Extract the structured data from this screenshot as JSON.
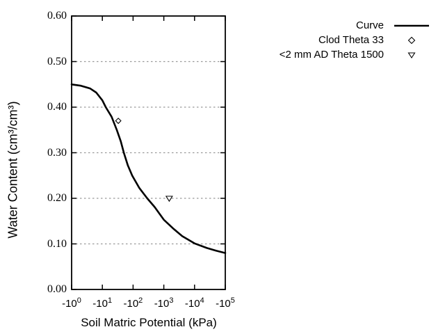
{
  "chart_data": {
    "type": "line",
    "title": "",
    "xlabel": "Soil Matric Potential (kPa)",
    "ylabel": "Water Content (cm³/cm³)",
    "x_axis": {
      "scale": "log10 of negative kPa",
      "decade_min": 0,
      "decade_max": 5,
      "tick_labels": [
        {
          "base": "-10",
          "exp": "0"
        },
        {
          "base": "-10",
          "exp": "1"
        },
        {
          "base": "-10",
          "exp": "2"
        },
        {
          "base": "-10",
          "exp": "3"
        },
        {
          "base": "-10",
          "exp": "4"
        },
        {
          "base": "-10",
          "exp": "5"
        }
      ]
    },
    "y_axis": {
      "min": 0.0,
      "max": 0.6,
      "step": 0.1,
      "tick_labels": [
        "0.00",
        "0.10",
        "0.20",
        "0.30",
        "0.40",
        "0.50",
        "0.60"
      ],
      "grid": "horizontal-dashed"
    },
    "series": [
      {
        "name": "Curve",
        "type": "line",
        "color": "#000000",
        "points_log10kpa_theta": [
          [
            0.0,
            0.45
          ],
          [
            0.3,
            0.447
          ],
          [
            0.6,
            0.441
          ],
          [
            0.8,
            0.432
          ],
          [
            1.0,
            0.415
          ],
          [
            1.11,
            0.4
          ],
          [
            1.3,
            0.379
          ],
          [
            1.47,
            0.35
          ],
          [
            1.6,
            0.325
          ],
          [
            1.7,
            0.3
          ],
          [
            1.83,
            0.272
          ],
          [
            1.97,
            0.25
          ],
          [
            2.2,
            0.223
          ],
          [
            2.46,
            0.2
          ],
          [
            2.7,
            0.181
          ],
          [
            3.0,
            0.153
          ],
          [
            3.3,
            0.134
          ],
          [
            3.6,
            0.117
          ],
          [
            4.0,
            0.101
          ],
          [
            4.4,
            0.091
          ],
          [
            4.7,
            0.085
          ],
          [
            5.0,
            0.08
          ]
        ]
      },
      {
        "name": "Clod Theta 33",
        "type": "scatter",
        "marker": "open-diamond",
        "points_kpa_theta": [
          [
            -33,
            0.37
          ]
        ]
      },
      {
        "name": "<2 mm AD Theta 1500",
        "type": "scatter",
        "marker": "open-triangle-down",
        "points_kpa_theta": [
          [
            -1500,
            0.2
          ]
        ]
      }
    ],
    "legend": {
      "position": "top-right",
      "entries": [
        "Curve",
        "Clod Theta 33",
        "<2 mm AD Theta 1500"
      ]
    }
  },
  "colors": {
    "line": "#000000",
    "grid": "#999999",
    "frame": "#000000",
    "marker_fill": "#ffffff",
    "text": "#000000",
    "background": "#ffffff"
  }
}
